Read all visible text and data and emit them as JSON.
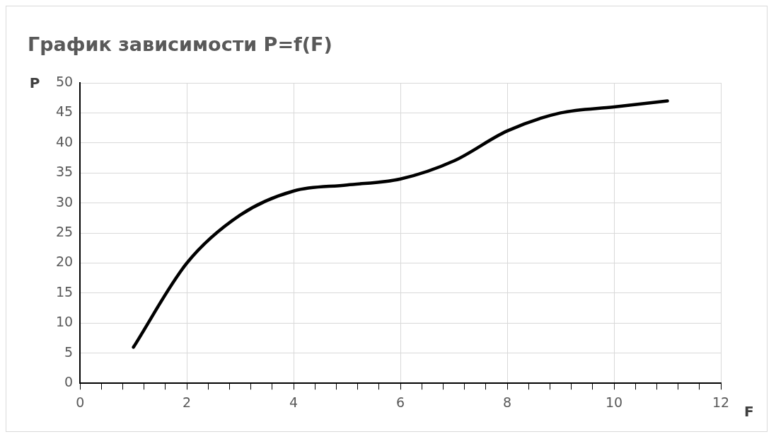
{
  "chart_data": {
    "type": "line",
    "title": "График зависимости P=f(F)",
    "xlabel": "F",
    "ylabel": "P",
    "x": [
      1,
      2,
      3,
      4,
      5,
      6,
      7,
      8,
      9,
      10,
      11
    ],
    "series": [
      {
        "color": "#000000",
        "values": [
          6,
          20,
          28,
          32,
          33,
          34,
          37,
          42,
          45,
          46,
          47
        ]
      }
    ],
    "xlim": [
      0,
      12
    ],
    "xticks": [
      0,
      {
        "value": 0.4,
        "label": null
      },
      {
        "value": 0.8,
        "label": null
      },
      {
        "value": 1.2,
        "label": null
      },
      {
        "value": 1.6,
        "label": null
      },
      2,
      {
        "value": 2.4,
        "label": null
      },
      {
        "value": 2.8,
        "label": null
      },
      {
        "value": 3.2,
        "label": null
      },
      {
        "value": 3.6,
        "label": null
      },
      4,
      {
        "value": 4.4,
        "label": null
      },
      {
        "value": 4.8,
        "label": null
      },
      {
        "value": 5.2,
        "label": null
      },
      {
        "value": 5.6,
        "label": null
      },
      6,
      {
        "value": 6.4,
        "label": null
      },
      {
        "value": 6.8,
        "label": null
      },
      {
        "value": 7.2,
        "label": null
      },
      {
        "value": 7.6,
        "label": null
      },
      8,
      {
        "value": 8.4,
        "label": null
      },
      {
        "value": 8.8,
        "label": null
      },
      {
        "value": 9.2,
        "label": null
      },
      {
        "value": 9.6,
        "label": null
      },
      10,
      {
        "value": 10.4,
        "label": null
      },
      {
        "value": 10.8,
        "label": null
      },
      {
        "value": 11.2,
        "label": null
      },
      {
        "value": 11.6,
        "label": null
      },
      12
    ],
    "ylim": [
      0,
      50
    ],
    "yticks": [
      0,
      5,
      10,
      15,
      20,
      25,
      30,
      35,
      40,
      45,
      50
    ],
    "grid": true,
    "legend": false,
    "marker": "none",
    "line_style": "solid"
  }
}
